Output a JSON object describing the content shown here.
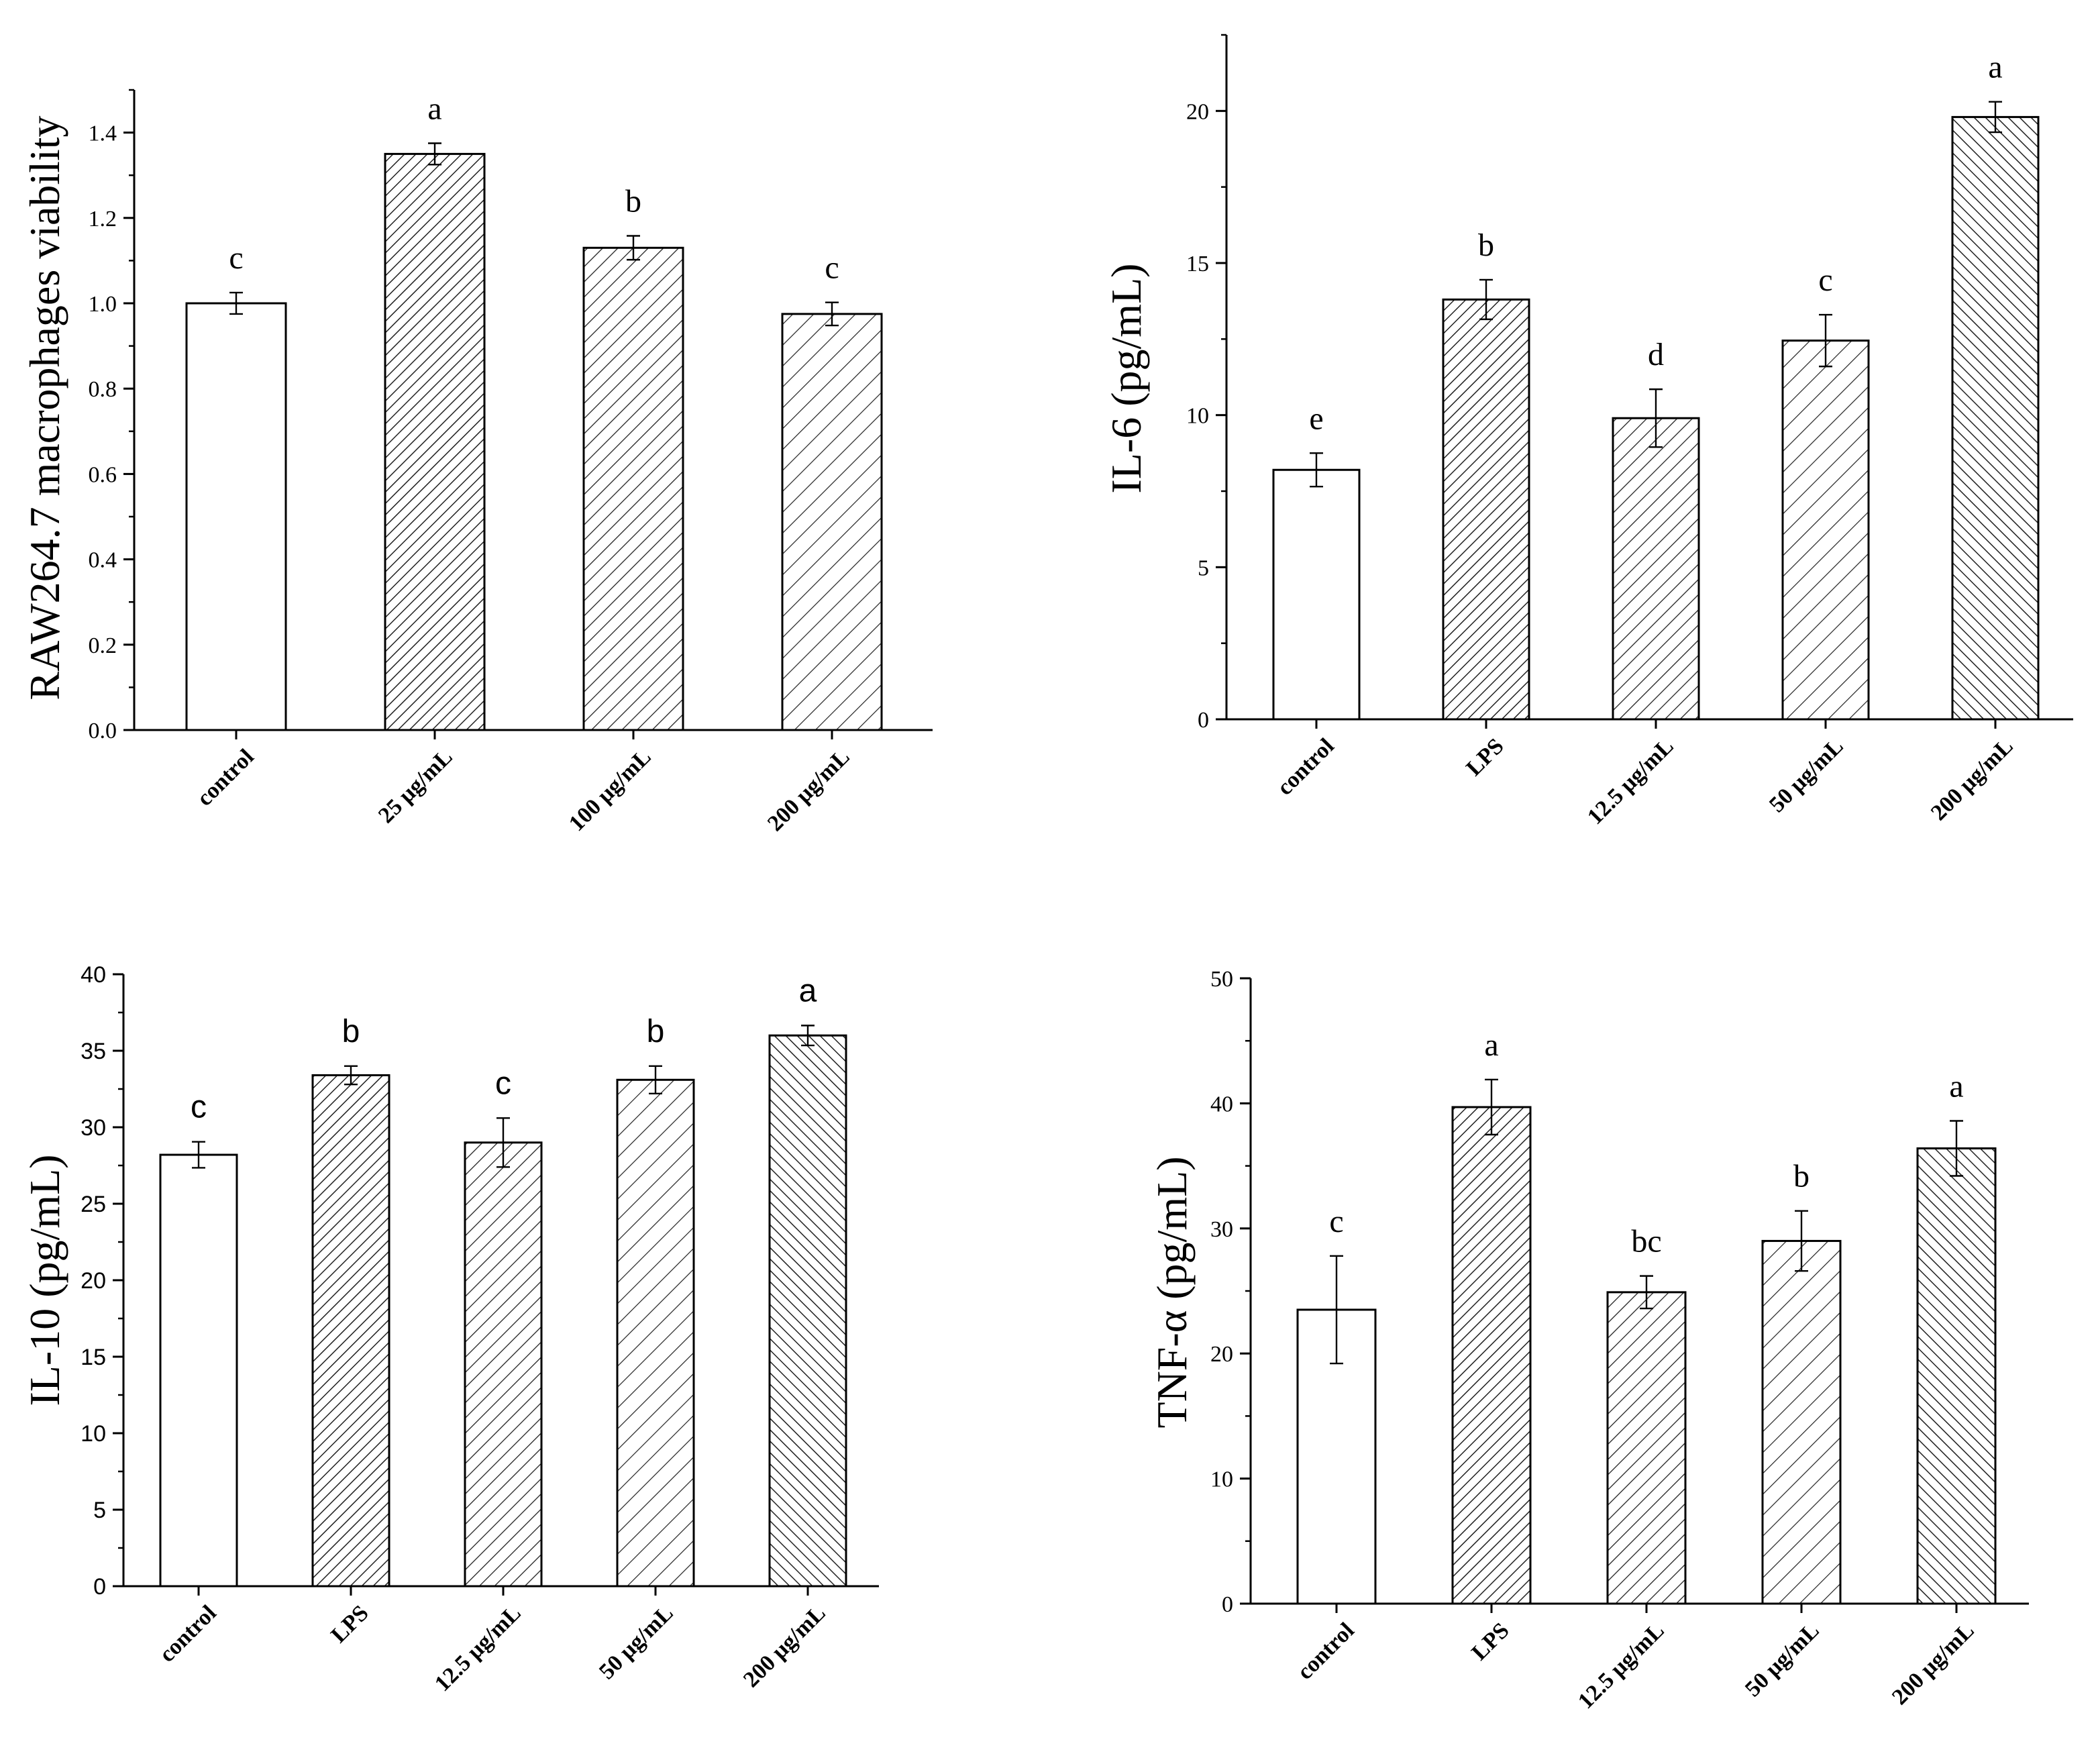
{
  "chart_data": [
    {
      "id": "viability",
      "type": "bar",
      "ylabel": "RAW264.7 macrophages viability",
      "ylim": [
        0,
        1.5
      ],
      "yticks": [
        "0.0",
        "0.2",
        "0.4",
        "0.6",
        "0.8",
        "1.0",
        "1.2",
        "1.4"
      ],
      "ytick_values": [
        0,
        0.2,
        0.4,
        0.6,
        0.8,
        1.0,
        1.2,
        1.4
      ],
      "minor_step": 0.1,
      "categories": [
        "control",
        "25 μg/mL",
        "100 μg/mL",
        "200 μg/mL"
      ],
      "values": [
        1.0,
        1.35,
        1.13,
        0.975
      ],
      "errors": [
        0.025,
        0.025,
        0.028,
        0.027
      ],
      "letters": [
        "c",
        "a",
        "b",
        "c"
      ],
      "patterns": [
        "none",
        "hatch-dense",
        "hatch-medium",
        "hatch-sparse"
      ]
    },
    {
      "id": "il6",
      "type": "bar",
      "ylabel": "IL-6 (pg/mL)",
      "ylim": [
        0,
        22.5
      ],
      "yticks": [
        "0",
        "5",
        "10",
        "15",
        "20"
      ],
      "ytick_values": [
        0,
        5,
        10,
        15,
        20
      ],
      "minor_step": 2.5,
      "categories": [
        "control",
        "LPS",
        "12.5 μg/mL",
        "50 μg/mL",
        "200 μg/mL"
      ],
      "values": [
        8.2,
        13.8,
        9.9,
        12.45,
        19.8
      ],
      "errors": [
        0.55,
        0.65,
        0.95,
        0.85,
        0.5
      ],
      "letters": [
        "e",
        "b",
        "d",
        "c",
        "a"
      ],
      "patterns": [
        "none",
        "hatch-dense",
        "hatch-medium",
        "hatch-sparse",
        "hatch-back"
      ]
    },
    {
      "id": "il10",
      "type": "bar",
      "ylabel": "IL-10 (pg/mL)",
      "ylim": [
        0,
        40
      ],
      "yticks": [
        "0",
        "5",
        "10",
        "15",
        "20",
        "25",
        "30",
        "35",
        "40"
      ],
      "ytick_values": [
        0,
        5,
        10,
        15,
        20,
        25,
        30,
        35,
        40
      ],
      "minor_step": 2.5,
      "categories": [
        "control",
        "LPS",
        "12.5 μg/mL",
        "50 μg/mL",
        "200 μg/mL"
      ],
      "values": [
        28.2,
        33.4,
        29.0,
        33.1,
        36.0
      ],
      "errors": [
        0.85,
        0.6,
        1.6,
        0.9,
        0.65
      ],
      "letters": [
        "c",
        "b",
        "c",
        "b",
        "a"
      ],
      "patterns": [
        "none",
        "hatch-dense",
        "hatch-medium",
        "hatch-sparse",
        "hatch-back"
      ]
    },
    {
      "id": "tnf",
      "type": "bar",
      "ylabel": "TNF-α (pg/mL)",
      "ylim": [
        0,
        50
      ],
      "yticks": [
        "0",
        "10",
        "20",
        "30",
        "40",
        "50"
      ],
      "ytick_values": [
        0,
        10,
        20,
        30,
        40,
        50
      ],
      "minor_step": 5,
      "categories": [
        "control",
        "LPS",
        "12.5 μg/mL",
        "50 μg/mL",
        "200 μg/mL"
      ],
      "values": [
        23.5,
        39.7,
        24.9,
        29.0,
        36.4
      ],
      "errors": [
        4.3,
        2.2,
        1.3,
        2.4,
        2.2
      ],
      "letters": [
        "c",
        "a",
        "bc",
        "b",
        "a"
      ],
      "patterns": [
        "none",
        "hatch-dense",
        "hatch-medium",
        "hatch-sparse",
        "hatch-back"
      ]
    }
  ]
}
